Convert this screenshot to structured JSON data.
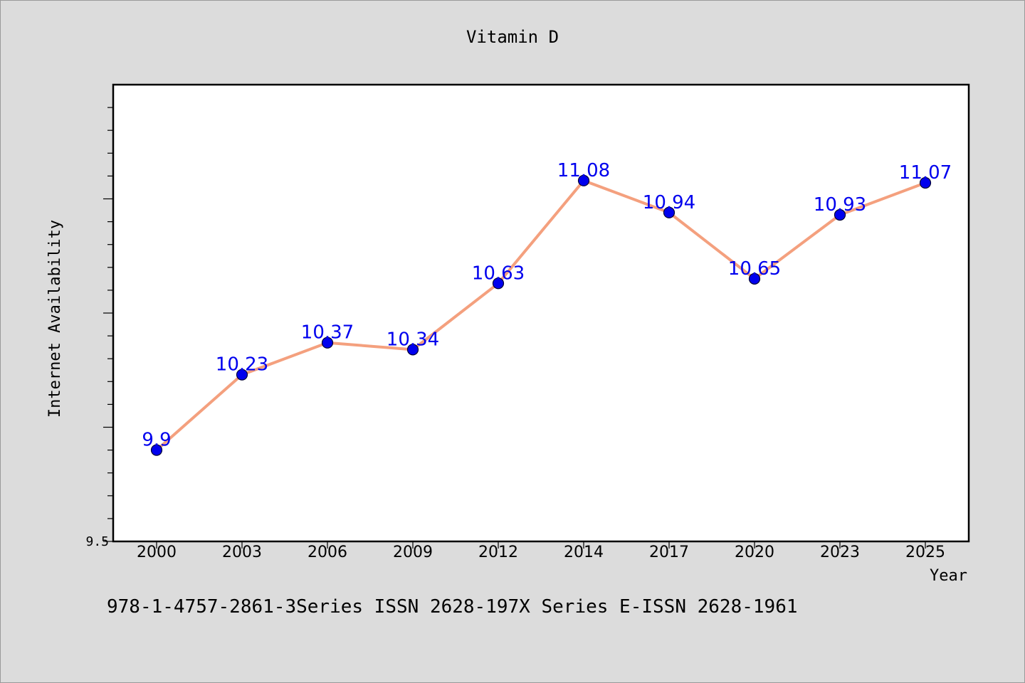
{
  "chart_data": {
    "type": "line",
    "title": "Vitamin D",
    "xlabel": "Year",
    "ylabel": "Internet Availability",
    "categories": [
      "2000",
      "2003",
      "2006",
      "2009",
      "2012",
      "2014",
      "2017",
      "2020",
      "2023",
      "2025"
    ],
    "series": [
      {
        "values": [
          9.9,
          10.23,
          10.37,
          10.34,
          10.63,
          11.08,
          10.94,
          10.65,
          10.93,
          11.07
        ],
        "labels": [
          "9.9",
          "10.23",
          "10.37",
          "10.34",
          "10.63",
          "11.08",
          "10.94",
          "10.65",
          "10.93",
          "11.07"
        ],
        "line_color": "#f4a07e",
        "marker_color": "#0000ee",
        "label_color": "#0000ee"
      }
    ],
    "ylim": [
      9.5,
      11.5
    ],
    "y_tick_labels": [
      "9.5"
    ],
    "grid": false,
    "legend": "none"
  },
  "footer": {
    "text": "978-1-4757-2861-3Series ISSN 2628-197X Series E-ISSN 2628-1961"
  },
  "colors": {
    "background": "#dcdcdc",
    "plot_background": "#ffffff",
    "axis": "#000000"
  }
}
